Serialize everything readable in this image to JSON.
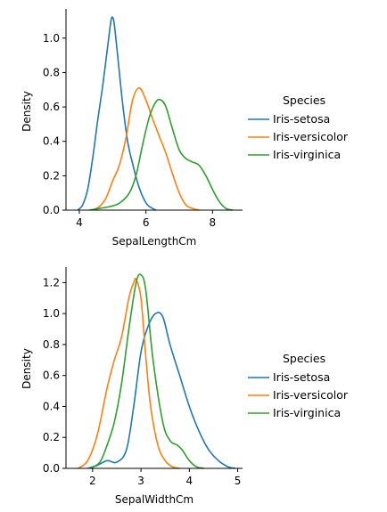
{
  "chart_data": [
    {
      "type": "line",
      "subtype": "kde",
      "xlabel": "SepalLengthCm",
      "ylabel": "Density",
      "xlim": [
        3.6,
        8.9
      ],
      "ylim": [
        0,
        1.17
      ],
      "xticks": [
        4,
        6,
        8
      ],
      "yticks": [
        0.0,
        0.2,
        0.4,
        0.6,
        0.8,
        1.0
      ],
      "legend": {
        "title": "Species",
        "placement": "right"
      },
      "series": [
        {
          "name": "Iris-setosa",
          "color": "#1f77b4",
          "x": [
            3.95,
            4.1,
            4.25,
            4.4,
            4.55,
            4.7,
            4.85,
            4.95,
            5.0,
            5.05,
            5.15,
            5.3,
            5.45,
            5.6,
            5.75,
            5.9,
            6.05,
            6.2,
            6.3
          ],
          "y": [
            0.0,
            0.03,
            0.12,
            0.3,
            0.52,
            0.72,
            0.95,
            1.1,
            1.12,
            1.08,
            0.9,
            0.62,
            0.4,
            0.27,
            0.16,
            0.08,
            0.03,
            0.01,
            0.0
          ]
        },
        {
          "name": "Iris-versicolor",
          "color": "#ff7f0e",
          "x": [
            4.4,
            4.6,
            4.8,
            5.0,
            5.2,
            5.4,
            5.6,
            5.8,
            6.0,
            6.2,
            6.4,
            6.6,
            6.8,
            7.0,
            7.2,
            7.4,
            7.6
          ],
          "y": [
            0.0,
            0.02,
            0.07,
            0.17,
            0.26,
            0.42,
            0.64,
            0.71,
            0.64,
            0.53,
            0.43,
            0.33,
            0.21,
            0.1,
            0.03,
            0.01,
            0.0
          ]
        },
        {
          "name": "Iris-virginica",
          "color": "#2ca02c",
          "x": [
            4.3,
            4.6,
            4.9,
            5.2,
            5.5,
            5.7,
            5.9,
            6.1,
            6.3,
            6.45,
            6.6,
            6.8,
            7.0,
            7.2,
            7.4,
            7.6,
            7.8,
            8.0,
            8.2,
            8.4,
            8.6
          ],
          "y": [
            0.0,
            0.01,
            0.02,
            0.04,
            0.1,
            0.2,
            0.38,
            0.54,
            0.63,
            0.64,
            0.6,
            0.47,
            0.35,
            0.3,
            0.28,
            0.26,
            0.2,
            0.12,
            0.05,
            0.01,
            0.0
          ]
        }
      ]
    },
    {
      "type": "line",
      "subtype": "kde",
      "xlabel": "SepalWidthCm",
      "ylabel": "Density",
      "xlim": [
        1.45,
        5.1
      ],
      "ylim": [
        0,
        1.3
      ],
      "xticks": [
        2,
        3,
        4,
        5
      ],
      "yticks": [
        0.0,
        0.2,
        0.4,
        0.6,
        0.8,
        1.0,
        1.2
      ],
      "legend": {
        "title": "Species",
        "placement": "right"
      },
      "series": [
        {
          "name": "Iris-setosa",
          "color": "#1f77b4",
          "x": [
            1.9,
            2.1,
            2.3,
            2.5,
            2.7,
            2.85,
            3.0,
            3.15,
            3.3,
            3.45,
            3.6,
            3.8,
            4.0,
            4.2,
            4.4,
            4.6,
            4.8,
            4.95
          ],
          "y": [
            0.0,
            0.02,
            0.05,
            0.04,
            0.12,
            0.4,
            0.75,
            0.92,
            1.0,
            0.98,
            0.8,
            0.6,
            0.4,
            0.24,
            0.12,
            0.05,
            0.01,
            0.0
          ]
        },
        {
          "name": "Iris-versicolor",
          "color": "#ff7f0e",
          "x": [
            1.7,
            1.9,
            2.1,
            2.3,
            2.45,
            2.6,
            2.75,
            2.85,
            2.9,
            3.0,
            3.1,
            3.2,
            3.35,
            3.5,
            3.65,
            3.8
          ],
          "y": [
            0.0,
            0.05,
            0.22,
            0.52,
            0.7,
            0.85,
            1.1,
            1.2,
            1.22,
            1.1,
            0.72,
            0.4,
            0.15,
            0.05,
            0.01,
            0.0
          ]
        },
        {
          "name": "Iris-virginica",
          "color": "#2ca02c",
          "x": [
            1.95,
            2.15,
            2.3,
            2.45,
            2.6,
            2.75,
            2.9,
            3.0,
            3.1,
            3.25,
            3.45,
            3.6,
            3.75,
            3.85,
            4.0,
            4.15,
            4.3
          ],
          "y": [
            0.0,
            0.04,
            0.15,
            0.3,
            0.55,
            0.9,
            1.2,
            1.25,
            1.15,
            0.7,
            0.3,
            0.18,
            0.15,
            0.12,
            0.05,
            0.01,
            0.0
          ]
        }
      ]
    }
  ]
}
